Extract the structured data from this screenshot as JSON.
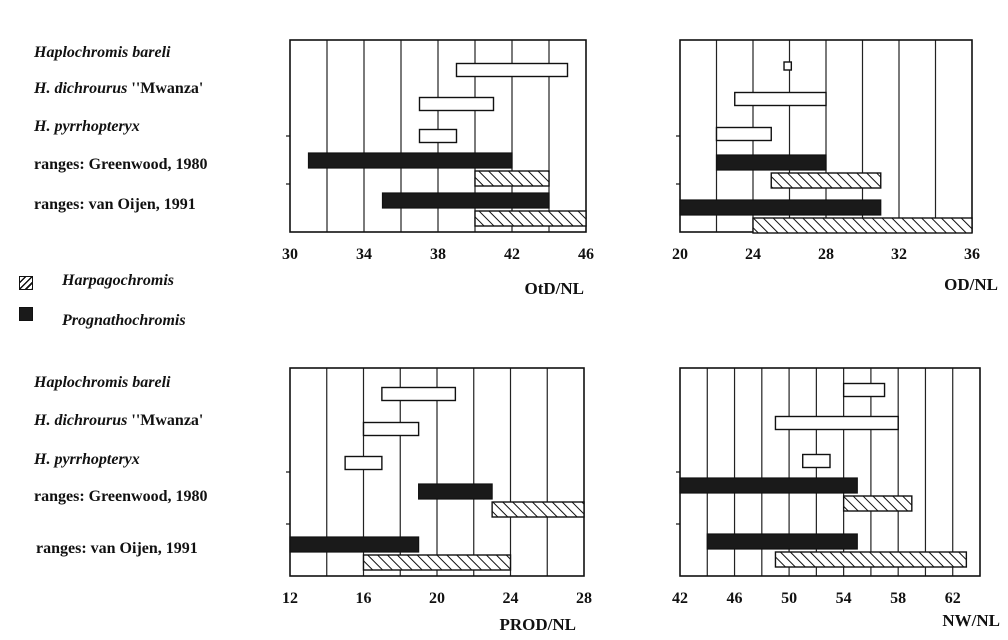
{
  "row_labels": {
    "species1_prefix": "Haplochromis",
    "species1_name": "bareli",
    "species2_prefix": "H.",
    "species2_name": "dichrourus",
    "species2_quote": "''Mwanza'",
    "species3_prefix": "H.",
    "species3_name": "pyrrhopteryx",
    "greenwood": "ranges: Greenwood, 1980",
    "van_oijen": "ranges: van Oijen, 1991"
  },
  "legend": {
    "harpagochromis": "Harpagochromis",
    "prognathochromis": "Prognathochromis"
  },
  "colors": {
    "axis": "#111111",
    "grid": "#222222",
    "prognathochromis_fill": "#1a1a1a",
    "harpagochromis_hatch": "#111111",
    "species_fill": "#ffffff"
  },
  "chart_data": [
    {
      "type": "bar",
      "subtype": "range",
      "xlabel": "OtD/NL",
      "xlim": [
        30,
        46
      ],
      "xticks": [
        30,
        34,
        38,
        42,
        46
      ],
      "grid": true,
      "ranges": [
        {
          "row": "Haplochromis bareli",
          "group": "species",
          "min": 39,
          "max": 45
        },
        {
          "row": "H. dichrourus 'Mwanza'",
          "group": "species",
          "min": 37,
          "max": 41
        },
        {
          "row": "H. pyrrhopteryx",
          "group": "species",
          "min": 37,
          "max": 39
        },
        {
          "row": "ranges: Greenwood, 1980",
          "group": "Prognathochromis",
          "min": 31,
          "max": 42
        },
        {
          "row": "ranges: Greenwood, 1980",
          "group": "Harpagochromis",
          "min": 40,
          "max": 44
        },
        {
          "row": "ranges: van Oijen, 1991",
          "group": "Prognathochromis",
          "min": 35,
          "max": 44
        },
        {
          "row": "ranges: van Oijen, 1991",
          "group": "Harpagochromis",
          "min": 40,
          "max": 46
        }
      ]
    },
    {
      "type": "bar",
      "subtype": "range",
      "xlabel": "OD/NL",
      "xlim": [
        20,
        36
      ],
      "xticks": [
        20,
        24,
        28,
        32,
        36
      ],
      "grid": true,
      "ranges": [
        {
          "row": "Haplochromis bareli",
          "group": "species",
          "min": 25.7,
          "max": 26.1
        },
        {
          "row": "H. dichrourus 'Mwanza'",
          "group": "species",
          "min": 23,
          "max": 28
        },
        {
          "row": "H. pyrrhopteryx",
          "group": "species",
          "min": 22,
          "max": 25
        },
        {
          "row": "ranges: Greenwood, 1980",
          "group": "Prognathochromis",
          "min": 22,
          "max": 28
        },
        {
          "row": "ranges: Greenwood, 1980",
          "group": "Harpagochromis",
          "min": 25,
          "max": 31
        },
        {
          "row": "ranges: van Oijen, 1991",
          "group": "Prognathochromis",
          "min": 20,
          "max": 31
        },
        {
          "row": "ranges: van Oijen, 1991",
          "group": "Harpagochromis",
          "min": 24,
          "max": 36
        }
      ]
    },
    {
      "type": "bar",
      "subtype": "range",
      "xlabel": "PROD/NL",
      "xlim": [
        12,
        28
      ],
      "xticks": [
        12,
        16,
        20,
        24,
        28
      ],
      "grid": true,
      "ranges": [
        {
          "row": "Haplochromis bareli",
          "group": "species",
          "min": 17,
          "max": 21
        },
        {
          "row": "H. dichrourus 'Mwanza'",
          "group": "species",
          "min": 16,
          "max": 19
        },
        {
          "row": "H. pyrrhopteryx",
          "group": "species",
          "min": 15,
          "max": 17
        },
        {
          "row": "ranges: Greenwood, 1980",
          "group": "Prognathochromis",
          "min": 19,
          "max": 23
        },
        {
          "row": "ranges: Greenwood, 1980",
          "group": "Harpagochromis",
          "min": 23,
          "max": 28
        },
        {
          "row": "ranges: van Oijen, 1991",
          "group": "Prognathochromis",
          "min": 12,
          "max": 19
        },
        {
          "row": "ranges: van Oijen, 1991",
          "group": "Harpagochromis",
          "min": 16,
          "max": 24
        }
      ]
    },
    {
      "type": "bar",
      "subtype": "range",
      "xlabel": "NW/NL",
      "xlim": [
        42,
        64
      ],
      "xticks": [
        42,
        46,
        50,
        54,
        58,
        62
      ],
      "grid": true,
      "ranges": [
        {
          "row": "Haplochromis bareli",
          "group": "species",
          "min": 54,
          "max": 57
        },
        {
          "row": "H. dichrourus 'Mwanza'",
          "group": "species",
          "min": 49,
          "max": 58
        },
        {
          "row": "H. pyrrhopteryx",
          "group": "species",
          "min": 51,
          "max": 53
        },
        {
          "row": "ranges: Greenwood, 1980",
          "group": "Prognathochromis",
          "min": 42,
          "max": 55
        },
        {
          "row": "ranges: Greenwood, 1980",
          "group": "Harpagochromis",
          "min": 54,
          "max": 59
        },
        {
          "row": "ranges: van Oijen, 1991",
          "group": "Prognathochromis",
          "min": 44,
          "max": 55
        },
        {
          "row": "ranges: van Oijen, 1991",
          "group": "Harpagochromis",
          "min": 49,
          "max": 63
        }
      ]
    }
  ]
}
